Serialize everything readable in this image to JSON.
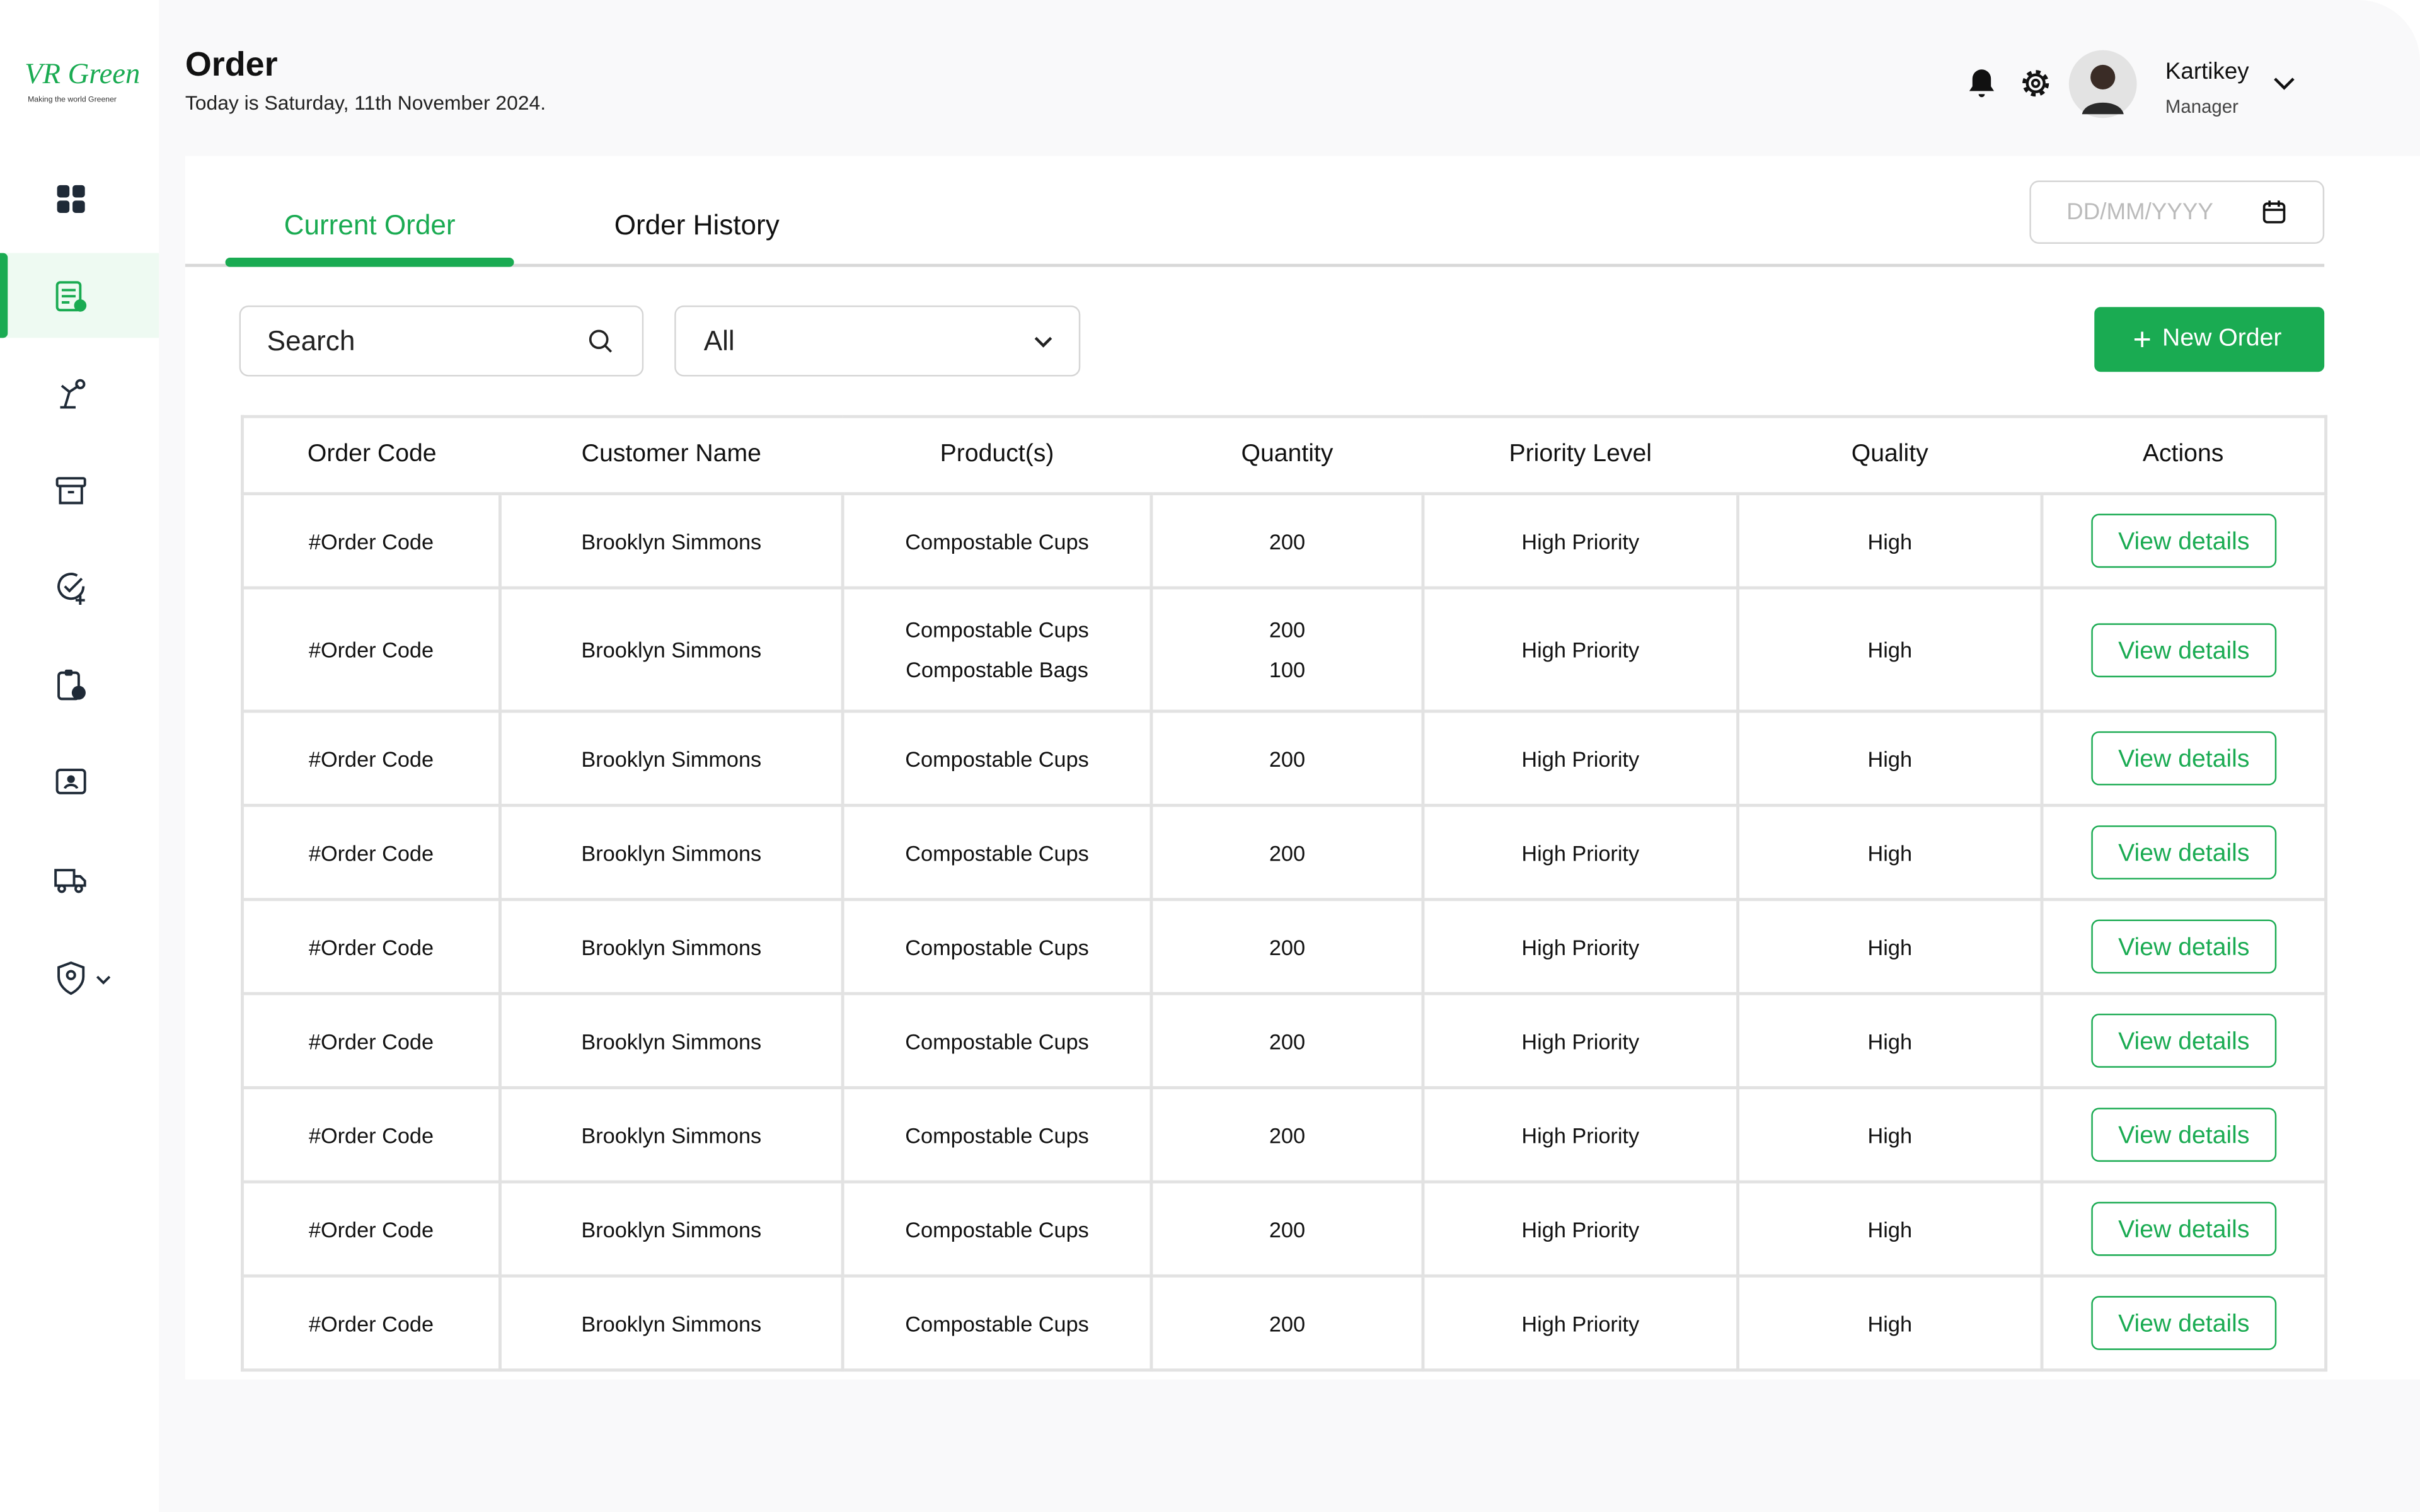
{
  "logo": {
    "name": "VR Green",
    "tagline": "Making the world Greener"
  },
  "header": {
    "title": "Order",
    "subtitle": "Today is Saturday, 11th November 2024.",
    "user_name": "Kartikey",
    "user_role": "Manager"
  },
  "tabs": [
    "Current Order",
    "Order History"
  ],
  "date_placeholder": "DD/MM/YYYY",
  "search_placeholder": "Search",
  "filter": "All",
  "new_order_button": "New Order",
  "table": {
    "columns": [
      "Order Code",
      "Customer Name",
      "Product(s)",
      "Quantity",
      "Priority Level",
      "Quality",
      "Actions"
    ],
    "rows": [
      {
        "order_code": "#Order Code",
        "customer": "Brooklyn Simmons",
        "products": [
          "Compostable Cups"
        ],
        "quantities": [
          200
        ],
        "priority": "High Priority",
        "quality": "High",
        "action": "View details"
      },
      {
        "order_code": "#Order Code",
        "customer": "Brooklyn Simmons",
        "products": [
          "Compostable Cups",
          "Compostable Bags"
        ],
        "quantities": [
          200,
          100
        ],
        "priority": "High Priority",
        "quality": "High",
        "action": "View details"
      },
      {
        "order_code": "#Order Code",
        "customer": "Brooklyn Simmons",
        "products": [
          "Compostable Cups"
        ],
        "quantities": [
          200
        ],
        "priority": "High Priority",
        "quality": "High",
        "action": "View details"
      },
      {
        "order_code": "#Order Code",
        "customer": "Brooklyn Simmons",
        "products": [
          "Compostable Cups"
        ],
        "quantities": [
          200
        ],
        "priority": "High Priority",
        "quality": "High",
        "action": "View details"
      },
      {
        "order_code": "#Order Code",
        "customer": "Brooklyn Simmons",
        "products": [
          "Compostable Cups"
        ],
        "quantities": [
          200
        ],
        "priority": "High Priority",
        "quality": "High",
        "action": "View details"
      },
      {
        "order_code": "#Order Code",
        "customer": "Brooklyn Simmons",
        "products": [
          "Compostable Cups"
        ],
        "quantities": [
          200
        ],
        "priority": "High Priority",
        "quality": "High",
        "action": "View details"
      },
      {
        "order_code": "#Order Code",
        "customer": "Brooklyn Simmons",
        "products": [
          "Compostable Cups"
        ],
        "quantities": [
          200
        ],
        "priority": "High Priority",
        "quality": "High",
        "action": "View details"
      },
      {
        "order_code": "#Order Code",
        "customer": "Brooklyn Simmons",
        "products": [
          "Compostable Cups"
        ],
        "quantities": [
          200
        ],
        "priority": "High Priority",
        "quality": "High",
        "action": "View details"
      },
      {
        "order_code": "#Order Code",
        "customer": "Brooklyn Simmons",
        "products": [
          "Compostable Cups"
        ],
        "quantities": [
          200
        ],
        "priority": "High Priority",
        "quality": "High",
        "action": "View details"
      }
    ]
  }
}
